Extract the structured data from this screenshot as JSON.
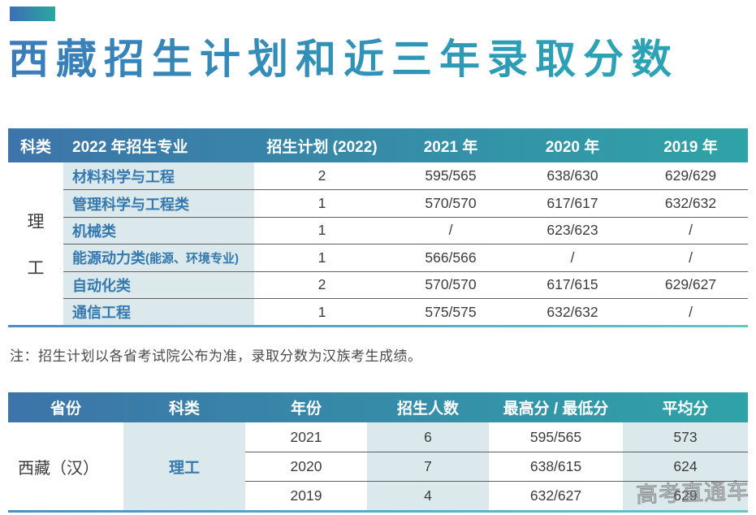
{
  "title": "西藏招生计划和近三年录取分数",
  "colors": {
    "header_gradient_left": "#3d74a9",
    "header_gradient_right": "#2fa3a7",
    "accent_left": "#3c6fb5",
    "accent_right": "#2aa79f",
    "shade_cell": "#dbe9ec",
    "major_text": "#3579ae",
    "title_gradient_left": "#3a7cba",
    "title_gradient_right": "#2ba3b4"
  },
  "table1": {
    "headers": [
      "科类",
      "2022 年招生专业",
      "招生计划 (2022)",
      "2021 年",
      "2020 年",
      "2019 年"
    ],
    "category_chars": [
      "理",
      "工"
    ],
    "rows": [
      {
        "major": "材料科学与工程",
        "plan": "2",
        "s2021": "595/565",
        "s2020": "638/630",
        "s2019": "629/629"
      },
      {
        "major": "管理科学与工程类",
        "plan": "1",
        "s2021": "570/570",
        "s2020": "617/617",
        "s2019": "632/632"
      },
      {
        "major": "机械类",
        "plan": "1",
        "s2021": "/",
        "s2020": "623/623",
        "s2019": "/"
      },
      {
        "major": "能源动力类",
        "major_note": " (能源、环境专业)",
        "plan": "1",
        "s2021": "566/566",
        "s2020": "/",
        "s2019": "/"
      },
      {
        "major": "自动化类",
        "plan": "2",
        "s2021": "570/570",
        "s2020": "617/615",
        "s2019": "629/627"
      },
      {
        "major": "通信工程",
        "plan": "1",
        "s2021": "575/575",
        "s2020": "632/632",
        "s2019": "/"
      }
    ]
  },
  "note": "注：招生计划以各省考试院公布为准，录取分数为汉族考生成绩。",
  "table2": {
    "headers": [
      "省份",
      "科类",
      "年份",
      "招生人数",
      "最高分 / 最低分",
      "平均分"
    ],
    "province": "西藏（汉）",
    "category": "理工",
    "rows": [
      {
        "year": "2021",
        "count": "6",
        "hi_lo": "595/565",
        "avg": "573"
      },
      {
        "year": "2020",
        "count": "7",
        "hi_lo": "638/615",
        "avg": "624"
      },
      {
        "year": "2019",
        "count": "4",
        "hi_lo": "632/627",
        "avg": "629"
      }
    ]
  },
  "watermark": "高考直通车"
}
